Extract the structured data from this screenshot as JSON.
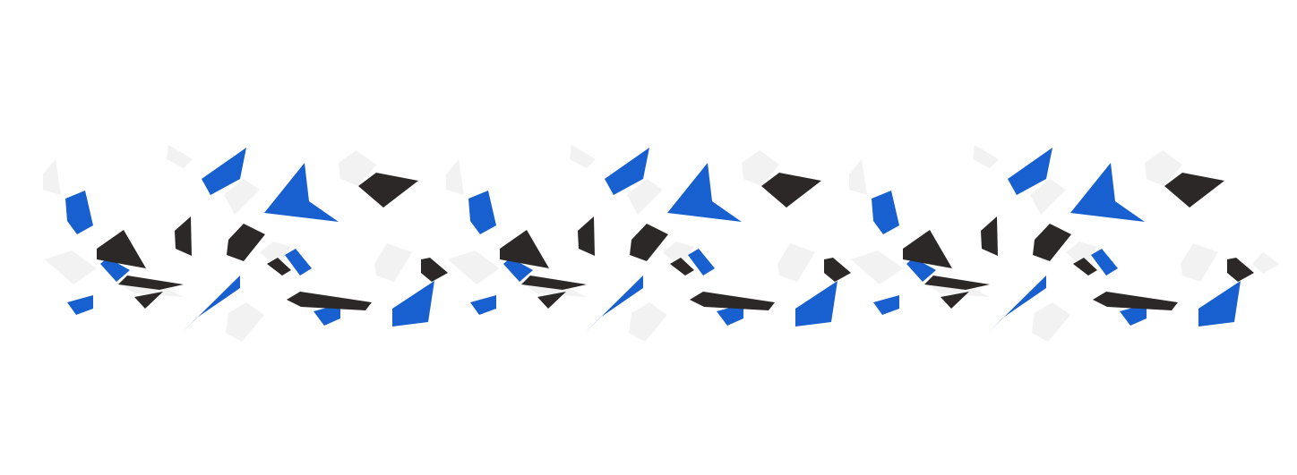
{
  "pattern": {
    "kind": "scattered-polygon-shard-border",
    "repeat_count": 3,
    "colors": {
      "background": "#ffffff",
      "blue": "#1860d0",
      "dark": "#2b2827",
      "light": "#f2f2f2"
    }
  }
}
